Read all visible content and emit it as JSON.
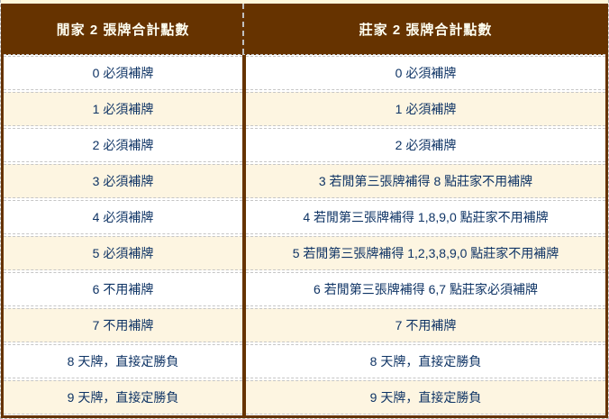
{
  "colors": {
    "table_border_brown": "#663300",
    "header_bg": "#663300",
    "header_text": "#FFFFF2",
    "row_white_bg": "#FFFFFF",
    "row_cream_bg": "#FDF5E1",
    "body_text_navy": "#0F3465",
    "dashed_line": "#C6C6C6",
    "top_strip": "#FFF8DC"
  },
  "table": {
    "headers": {
      "player": "閒家 2 張牌合計點數",
      "banker": "莊家 2 張牌合計點數"
    },
    "rows": [
      {
        "player": "0 必須補牌",
        "banker": "0 必須補牌"
      },
      {
        "player": "1 必須補牌",
        "banker": "1 必須補牌"
      },
      {
        "player": "2 必須補牌",
        "banker": "2 必須補牌"
      },
      {
        "player": "3 必須補牌",
        "banker": "3 若閒第三張牌補得 8 點莊家不用補牌"
      },
      {
        "player": "4 必須補牌",
        "banker": "4 若閒第三張牌補得 1,8,9,0 點莊家不用補牌"
      },
      {
        "player": "5 必須補牌",
        "banker": "5 若閒第三張牌補得 1,2,3,8,9,0 點莊家不用補牌"
      },
      {
        "player": "6 不用補牌",
        "banker": "6 若閒第三張牌補得 6,7 點莊家必須補牌"
      },
      {
        "player": "7 不用補牌",
        "banker": "7 不用補牌"
      },
      {
        "player": "8 天牌，直接定勝負",
        "banker": "8 天牌，直接定勝負"
      },
      {
        "player": "9 天牌，直接定勝負",
        "banker": "9 天牌，直接定勝負"
      }
    ]
  }
}
